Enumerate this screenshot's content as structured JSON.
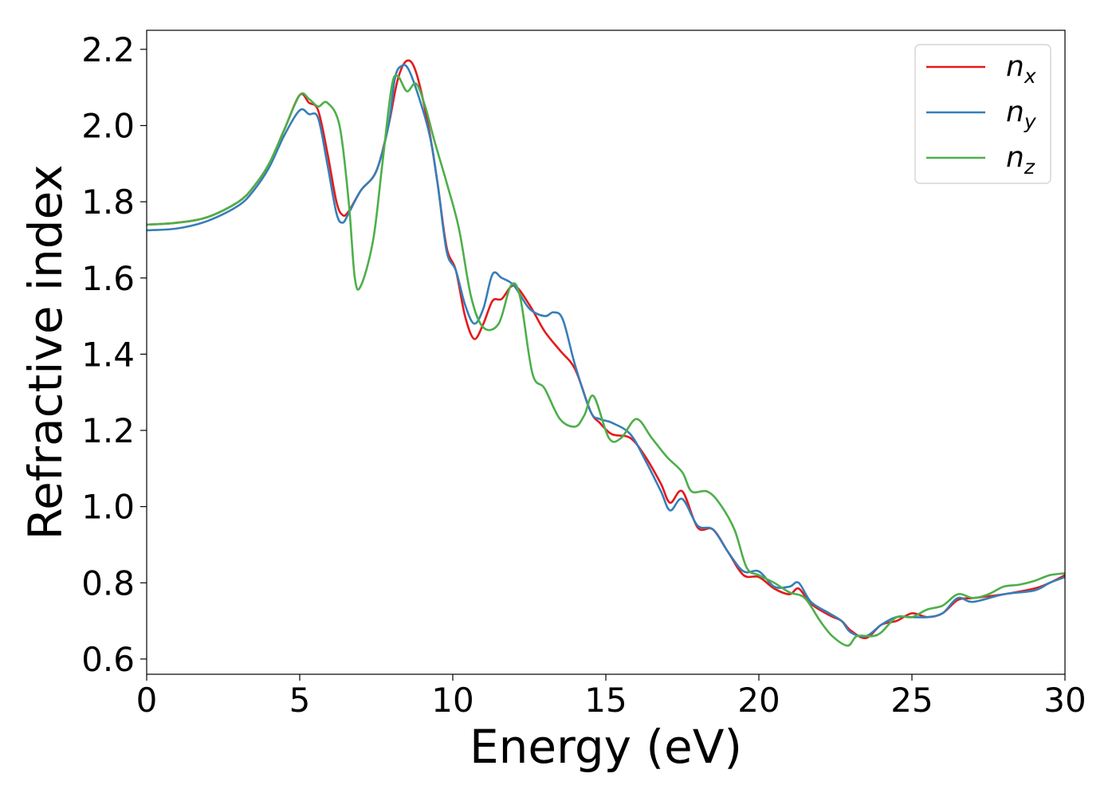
{
  "chart_data": {
    "type": "line",
    "xlabel": "Energy (eV)",
    "ylabel": "Refractive index",
    "xlim": [
      0,
      30
    ],
    "ylim": [
      0.56,
      2.25
    ],
    "xticks": [
      0,
      5,
      10,
      15,
      20,
      25,
      30
    ],
    "xtick_labels": [
      "0",
      "5",
      "10",
      "15",
      "20",
      "25",
      "30"
    ],
    "yticks": [
      0.6,
      0.8,
      1.0,
      1.2,
      1.4,
      1.6,
      1.8,
      2.0,
      2.2
    ],
    "ytick_labels": [
      "0.6",
      "0.8",
      "1.0",
      "1.2",
      "1.4",
      "1.6",
      "1.8",
      "2.0",
      "2.2"
    ],
    "grid": false,
    "legend_position": "top-right",
    "series": [
      {
        "name": "n",
        "subscript": "x",
        "color": "#e41a1c",
        "points": [
          [
            0,
            1.74
          ],
          [
            1,
            1.745
          ],
          [
            2,
            1.76
          ],
          [
            3,
            1.8
          ],
          [
            3.5,
            1.84
          ],
          [
            4,
            1.9
          ],
          [
            4.5,
            1.99
          ],
          [
            5,
            2.08
          ],
          [
            5.3,
            2.06
          ],
          [
            5.6,
            2.04
          ],
          [
            5.9,
            1.93
          ],
          [
            6.2,
            1.8
          ],
          [
            6.4,
            1.765
          ],
          [
            6.6,
            1.775
          ],
          [
            7,
            1.83
          ],
          [
            7.5,
            1.88
          ],
          [
            7.9,
            2.0
          ],
          [
            8.2,
            2.12
          ],
          [
            8.5,
            2.17
          ],
          [
            8.8,
            2.14
          ],
          [
            9.2,
            2.0
          ],
          [
            9.5,
            1.85
          ],
          [
            9.8,
            1.68
          ],
          [
            10.1,
            1.62
          ],
          [
            10.4,
            1.5
          ],
          [
            10.7,
            1.44
          ],
          [
            11,
            1.48
          ],
          [
            11.3,
            1.54
          ],
          [
            11.6,
            1.545
          ],
          [
            12,
            1.58
          ],
          [
            12.5,
            1.53
          ],
          [
            13,
            1.46
          ],
          [
            13.5,
            1.41
          ],
          [
            14,
            1.36
          ],
          [
            14.5,
            1.25
          ],
          [
            14.8,
            1.22
          ],
          [
            15.2,
            1.19
          ],
          [
            15.8,
            1.18
          ],
          [
            16.3,
            1.13
          ],
          [
            16.8,
            1.06
          ],
          [
            17.1,
            1.01
          ],
          [
            17.5,
            1.04
          ],
          [
            18,
            0.945
          ],
          [
            18.5,
            0.94
          ],
          [
            19,
            0.88
          ],
          [
            19.5,
            0.82
          ],
          [
            20,
            0.815
          ],
          [
            20.5,
            0.785
          ],
          [
            21,
            0.77
          ],
          [
            21.3,
            0.785
          ],
          [
            21.7,
            0.745
          ],
          [
            22.3,
            0.715
          ],
          [
            22.7,
            0.7
          ],
          [
            23,
            0.675
          ],
          [
            23.5,
            0.655
          ],
          [
            24,
            0.69
          ],
          [
            24.5,
            0.7
          ],
          [
            25,
            0.72
          ],
          [
            25.5,
            0.71
          ],
          [
            26,
            0.72
          ],
          [
            26.5,
            0.755
          ],
          [
            27,
            0.76
          ],
          [
            28,
            0.77
          ],
          [
            29,
            0.785
          ],
          [
            29.5,
            0.8
          ],
          [
            30,
            0.82
          ]
        ]
      },
      {
        "name": "n",
        "subscript": "y",
        "color": "#377eb8",
        "points": [
          [
            0,
            1.725
          ],
          [
            1,
            1.73
          ],
          [
            2,
            1.75
          ],
          [
            3,
            1.79
          ],
          [
            3.5,
            1.83
          ],
          [
            4,
            1.89
          ],
          [
            4.5,
            1.975
          ],
          [
            5,
            2.04
          ],
          [
            5.3,
            2.03
          ],
          [
            5.6,
            2.02
          ],
          [
            5.9,
            1.9
          ],
          [
            6.2,
            1.77
          ],
          [
            6.4,
            1.745
          ],
          [
            6.6,
            1.77
          ],
          [
            7,
            1.83
          ],
          [
            7.5,
            1.88
          ],
          [
            7.9,
            2.0
          ],
          [
            8.1,
            2.12
          ],
          [
            8.3,
            2.155
          ],
          [
            8.6,
            2.14
          ],
          [
            9.2,
            1.99
          ],
          [
            9.5,
            1.85
          ],
          [
            9.8,
            1.67
          ],
          [
            10.1,
            1.62
          ],
          [
            10.4,
            1.53
          ],
          [
            10.7,
            1.48
          ],
          [
            11,
            1.52
          ],
          [
            11.3,
            1.61
          ],
          [
            11.6,
            1.6
          ],
          [
            12,
            1.58
          ],
          [
            12.5,
            1.52
          ],
          [
            13,
            1.5
          ],
          [
            13.3,
            1.51
          ],
          [
            13.6,
            1.49
          ],
          [
            14,
            1.37
          ],
          [
            14.5,
            1.25
          ],
          [
            14.8,
            1.23
          ],
          [
            15.2,
            1.22
          ],
          [
            15.8,
            1.19
          ],
          [
            16.3,
            1.12
          ],
          [
            16.8,
            1.04
          ],
          [
            17.1,
            0.99
          ],
          [
            17.5,
            1.02
          ],
          [
            18,
            0.95
          ],
          [
            18.5,
            0.94
          ],
          [
            19,
            0.88
          ],
          [
            19.5,
            0.83
          ],
          [
            20,
            0.83
          ],
          [
            20.5,
            0.79
          ],
          [
            21,
            0.79
          ],
          [
            21.3,
            0.8
          ],
          [
            21.7,
            0.75
          ],
          [
            22.3,
            0.72
          ],
          [
            22.7,
            0.7
          ],
          [
            23,
            0.67
          ],
          [
            23.5,
            0.66
          ],
          [
            24,
            0.69
          ],
          [
            24.5,
            0.71
          ],
          [
            25,
            0.71
          ],
          [
            25.5,
            0.71
          ],
          [
            26,
            0.72
          ],
          [
            26.5,
            0.76
          ],
          [
            27,
            0.75
          ],
          [
            28,
            0.77
          ],
          [
            29,
            0.78
          ],
          [
            29.5,
            0.8
          ],
          [
            30,
            0.815
          ]
        ]
      },
      {
        "name": "n",
        "subscript": "z",
        "color": "#4daf4a",
        "points": [
          [
            0,
            1.74
          ],
          [
            1,
            1.745
          ],
          [
            2,
            1.76
          ],
          [
            3,
            1.8
          ],
          [
            3.5,
            1.84
          ],
          [
            4,
            1.9
          ],
          [
            4.5,
            1.99
          ],
          [
            5,
            2.08
          ],
          [
            5.3,
            2.07
          ],
          [
            5.6,
            2.05
          ],
          [
            5.9,
            2.06
          ],
          [
            6.3,
            2.0
          ],
          [
            6.6,
            1.8
          ],
          [
            6.8,
            1.6
          ],
          [
            7,
            1.58
          ],
          [
            7.4,
            1.7
          ],
          [
            7.7,
            1.9
          ],
          [
            8,
            2.1
          ],
          [
            8.2,
            2.13
          ],
          [
            8.5,
            2.09
          ],
          [
            8.8,
            2.11
          ],
          [
            9.1,
            2.05
          ],
          [
            9.4,
            1.96
          ],
          [
            9.8,
            1.85
          ],
          [
            10.2,
            1.73
          ],
          [
            10.6,
            1.55
          ],
          [
            11,
            1.47
          ],
          [
            11.5,
            1.48
          ],
          [
            11.9,
            1.58
          ],
          [
            12.2,
            1.55
          ],
          [
            12.6,
            1.35
          ],
          [
            13,
            1.31
          ],
          [
            13.5,
            1.23
          ],
          [
            14,
            1.21
          ],
          [
            14.3,
            1.24
          ],
          [
            14.6,
            1.29
          ],
          [
            15.1,
            1.18
          ],
          [
            15.5,
            1.18
          ],
          [
            16,
            1.23
          ],
          [
            16.5,
            1.18
          ],
          [
            17,
            1.13
          ],
          [
            17.5,
            1.09
          ],
          [
            17.8,
            1.04
          ],
          [
            18.3,
            1.04
          ],
          [
            18.7,
            1.01
          ],
          [
            19.2,
            0.94
          ],
          [
            19.6,
            0.84
          ],
          [
            20,
            0.82
          ],
          [
            20.5,
            0.8
          ],
          [
            21,
            0.775
          ],
          [
            21.5,
            0.76
          ],
          [
            22,
            0.7
          ],
          [
            22.4,
            0.66
          ],
          [
            22.9,
            0.635
          ],
          [
            23.2,
            0.66
          ],
          [
            23.7,
            0.66
          ],
          [
            24,
            0.67
          ],
          [
            24.5,
            0.71
          ],
          [
            25,
            0.71
          ],
          [
            25.5,
            0.73
          ],
          [
            26,
            0.74
          ],
          [
            26.5,
            0.77
          ],
          [
            27,
            0.76
          ],
          [
            27.5,
            0.77
          ],
          [
            28,
            0.79
          ],
          [
            28.5,
            0.795
          ],
          [
            29,
            0.805
          ],
          [
            29.5,
            0.82
          ],
          [
            30,
            0.825
          ]
        ]
      }
    ]
  }
}
